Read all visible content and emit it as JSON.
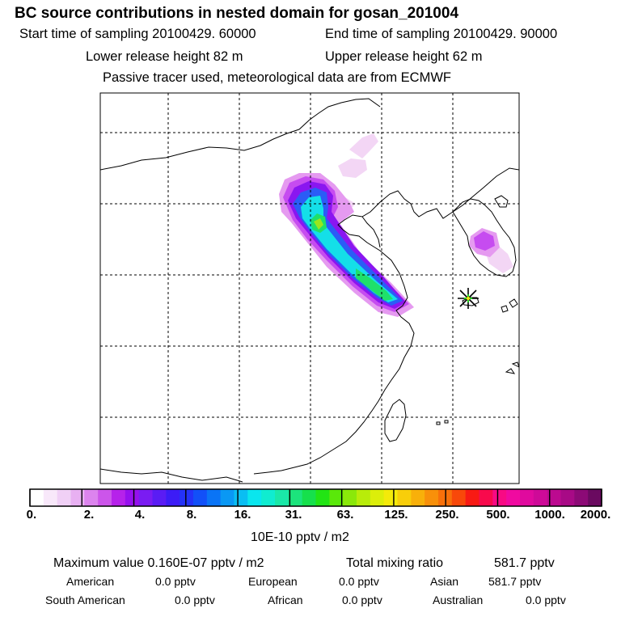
{
  "header": {
    "title": "BC  source contributions in nested domain for gosan_201004",
    "start_time": "Start time of sampling 20100429. 60000",
    "end_time": "End time of sampling 20100429. 90000",
    "lower_release": "Lower release height   82 m",
    "upper_release": "Upper release height   62 m",
    "model_note": "Passive tracer used, meteorological data are from ECMWF"
  },
  "colorbar": {
    "tick_labels": [
      "0.",
      "2.",
      "4.",
      "8.",
      "16.",
      "31.",
      "63.",
      "125.",
      "250.",
      "500.",
      "1000.",
      "2000."
    ],
    "colors": [
      "#ffffff",
      "#f8e8fa",
      "#f0d0f6",
      "#e8b0f2",
      "#dc84ee",
      "#cc55ea",
      "#b622ea",
      "#9610ee",
      "#7a1cf2",
      "#5a1cf4",
      "#3c1cf6",
      "#2432f8",
      "#1250f8",
      "#0a74f6",
      "#0a98f4",
      "#0abef2",
      "#0ae6ee",
      "#10ecd0",
      "#1ae8a8",
      "#1ce47c",
      "#16e04c",
      "#22e414",
      "#5ae80a",
      "#8ae80a",
      "#b8ec0a",
      "#dcee0a",
      "#f4ea0a",
      "#f8ce0a",
      "#f8b00a",
      "#f8900a",
      "#f8700a",
      "#f8480a",
      "#f81a14",
      "#f80a4c",
      "#f80a84",
      "#f00aa0",
      "#e00a9e",
      "#ce0a98",
      "#bc0a90",
      "#a80a86",
      "#8c0a76",
      "#6a0a60"
    ],
    "unit": "10E-10 pptv / m2"
  },
  "stats": {
    "max_label": "Maximum value  0.160E-07 pptv / m2",
    "total_label": "Total mixing ratio",
    "total_value": "581.7 pptv",
    "contributions": [
      {
        "name": "American",
        "value": "0.0 pptv"
      },
      {
        "name": "European",
        "value": "0.0 pptv"
      },
      {
        "name": "Asian",
        "value": "581.7 pptv"
      },
      {
        "name": "South American",
        "value": "0.0 pptv"
      },
      {
        "name": "African",
        "value": "0.0 pptv"
      },
      {
        "name": "Australian",
        "value": "0.0 pptv"
      }
    ]
  },
  "map": {
    "receptor_marker": "star",
    "plume_colors": {
      "faint": "#f3d6f5",
      "light": "#e59af0",
      "mid": "#c64cf0",
      "purple": "#8a16f0",
      "blue": "#2b5cf6",
      "cyan": "#14dfe8",
      "green": "#1fe06a",
      "lime": "#9ae61c"
    }
  }
}
